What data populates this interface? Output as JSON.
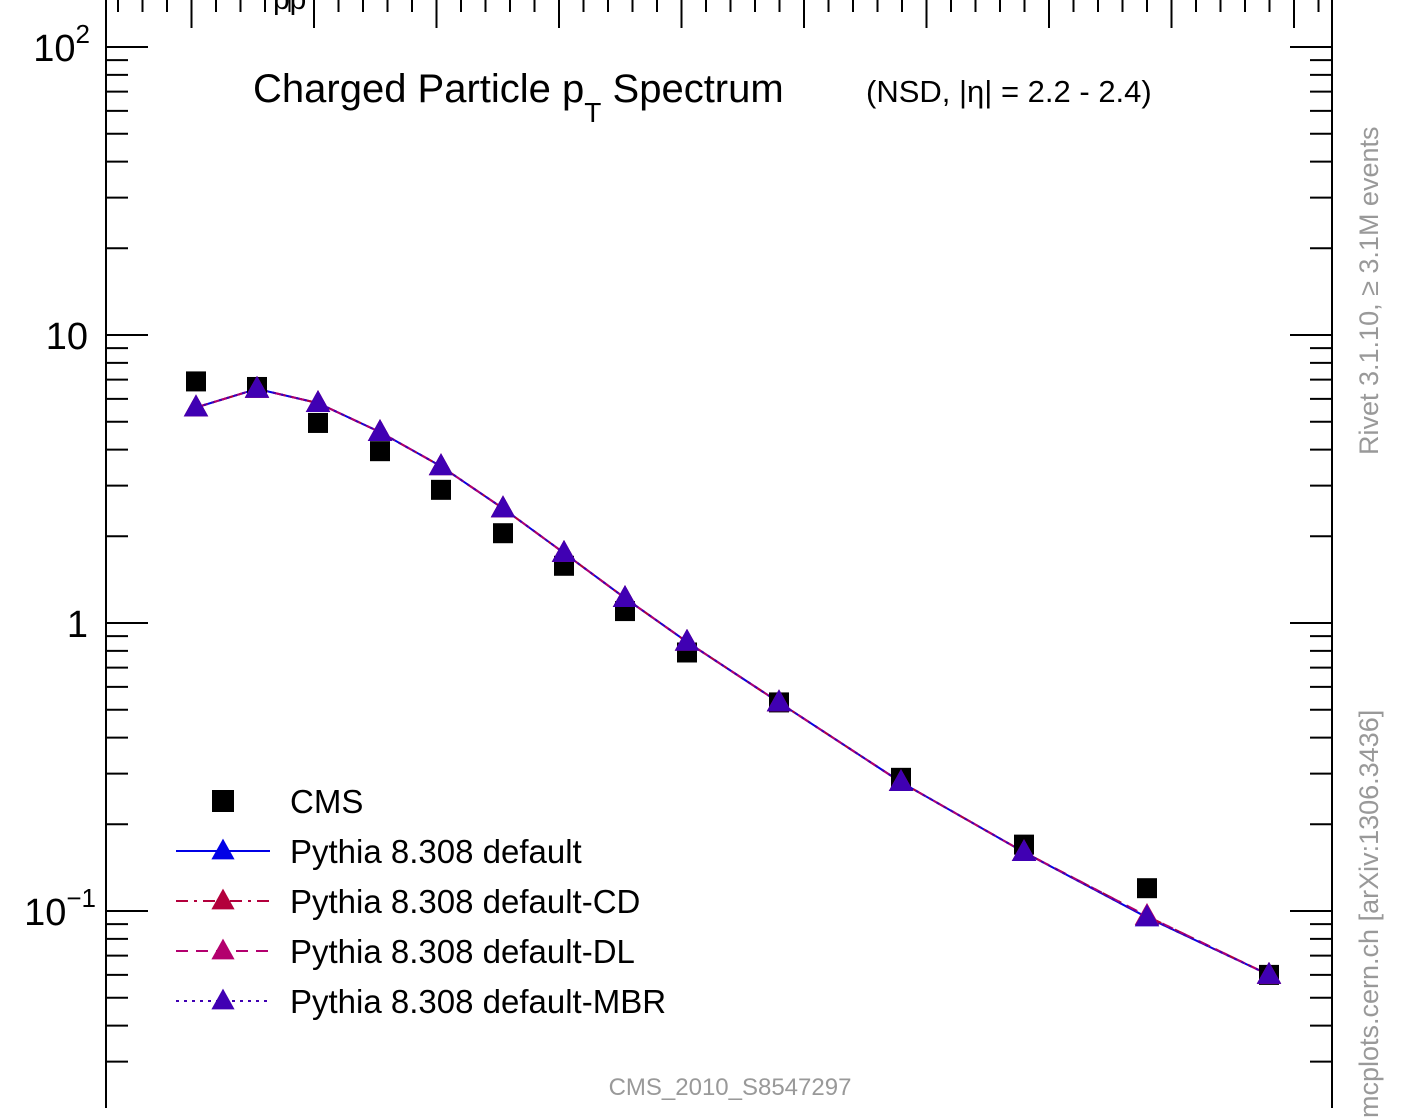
{
  "top_cut_label": "pp",
  "side_labels": {
    "rivet": "Rivet 3.1.10, ≥ 3.1M events",
    "mcplots": "mcplots.cern.ch [arXiv:1306.3436]"
  },
  "footer": "CMS_2010_S8547297",
  "chart_data": {
    "type": "scatter",
    "title": "Charged Particle p",
    "title_sub": "T",
    "title_tail": "Spectrum",
    "subtitle": "(NSD, |η| = 2.2 - 2.4)",
    "xlabel": "",
    "ylabel": "",
    "yscale": "log",
    "ylim": [
      0.025,
      200
    ],
    "xlim": [
      0,
      10
    ],
    "y_tick_labels": [
      "10^2",
      "10",
      "1",
      "10^−1"
    ],
    "series": [
      {
        "name": "CMS",
        "style": "marker",
        "marker": "square",
        "color": "#000000",
        "x": [
          0.15,
          0.65,
          1.15,
          1.65,
          2.15,
          2.65,
          3.15,
          3.65,
          4.15,
          4.9,
          5.9,
          6.9,
          7.9,
          8.9
        ],
        "y": [
          6.9,
          6.6,
          4.95,
          3.95,
          2.9,
          2.05,
          1.58,
          1.1,
          0.79,
          0.53,
          0.29,
          0.17,
          0.12,
          0.06
        ]
      },
      {
        "name": "Pythia 8.308 default",
        "style": "solid",
        "marker": "triangle",
        "color": "#0000e6",
        "x": [
          0.15,
          0.65,
          1.15,
          1.65,
          2.15,
          2.65,
          3.15,
          3.65,
          4.15,
          4.9,
          5.9,
          6.9,
          7.9,
          8.9
        ],
        "y": [
          5.6,
          6.5,
          5.8,
          4.6,
          3.5,
          2.5,
          1.75,
          1.22,
          0.86,
          0.53,
          0.28,
          0.16,
          0.095,
          0.06
        ]
      },
      {
        "name": "Pythia 8.308 default-CD",
        "style": "dashdot",
        "marker": "triangle",
        "color": "#b3003c",
        "x": [
          0.15,
          0.65,
          1.15,
          1.65,
          2.15,
          2.65,
          3.15,
          3.65,
          4.15,
          4.9,
          5.9,
          6.9,
          7.9,
          8.9
        ],
        "y": [
          5.6,
          6.5,
          5.8,
          4.6,
          3.5,
          2.5,
          1.75,
          1.22,
          0.86,
          0.53,
          0.28,
          0.16,
          0.096,
          0.06
        ]
      },
      {
        "name": "Pythia 8.308 default-DL",
        "style": "dashed",
        "marker": "triangle",
        "color": "#b3006e",
        "x": [
          0.15,
          0.65,
          1.15,
          1.65,
          2.15,
          2.65,
          3.15,
          3.65,
          4.15,
          4.9,
          5.9,
          6.9,
          7.9,
          8.9
        ],
        "y": [
          5.6,
          6.5,
          5.8,
          4.6,
          3.5,
          2.5,
          1.75,
          1.22,
          0.86,
          0.53,
          0.28,
          0.16,
          0.096,
          0.06
        ]
      },
      {
        "name": "Pythia 8.308 default-MBR",
        "style": "dotted",
        "marker": "triangle",
        "color": "#4000b3",
        "x": [
          0.15,
          0.65,
          1.15,
          1.65,
          2.15,
          2.65,
          3.15,
          3.65,
          4.15,
          4.9,
          5.9,
          6.9,
          7.9,
          8.9
        ],
        "y": [
          5.6,
          6.5,
          5.8,
          4.6,
          3.5,
          2.5,
          1.75,
          1.22,
          0.86,
          0.53,
          0.28,
          0.16,
          0.095,
          0.06
        ]
      }
    ],
    "legend_position": "bottom-left"
  }
}
